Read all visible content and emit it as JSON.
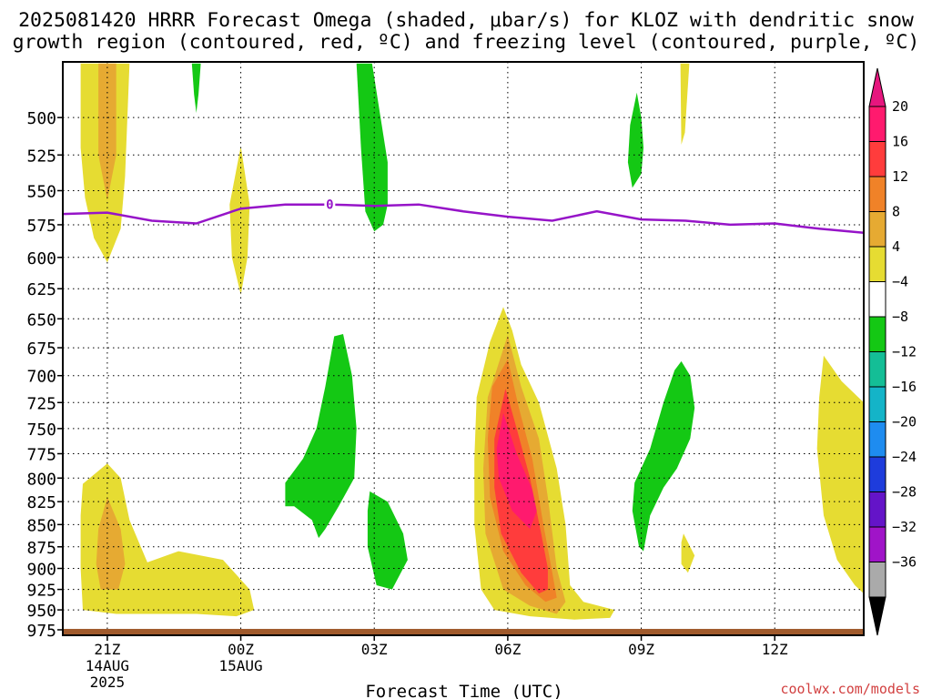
{
  "title": {
    "line1": "2025081420 HRRR Forecast Omega (shaded, μbar/s) for KLOZ with dendritic snow",
    "line2": "growth region (contoured, red, ºC) and freezing level (contoured, purple, ºC)"
  },
  "xlabel": "Forecast Time (UTC)",
  "credit": "coolwx.com/models",
  "y_ticks": [
    "500",
    "525",
    "550",
    "575",
    "600",
    "625",
    "650",
    "675",
    "700",
    "725",
    "750",
    "775",
    "800",
    "825",
    "850",
    "875",
    "900",
    "925",
    "950",
    "975"
  ],
  "x_ticks": [
    {
      "label": "21Z",
      "hour": 0,
      "sub1": "14AUG",
      "sub2": "2025"
    },
    {
      "label": "00Z",
      "hour": 3,
      "sub1": "15AUG",
      "sub2": ""
    },
    {
      "label": "03Z",
      "hour": 6,
      "sub1": "",
      "sub2": ""
    },
    {
      "label": "06Z",
      "hour": 9,
      "sub1": "",
      "sub2": ""
    },
    {
      "label": "09Z",
      "hour": 12,
      "sub1": "",
      "sub2": ""
    },
    {
      "label": "12Z",
      "hour": 15,
      "sub1": "",
      "sub2": ""
    }
  ],
  "colorbar": [
    {
      "label": "20",
      "color": "#ff1a6e"
    },
    {
      "label": "16",
      "color": "#ff3c3c"
    },
    {
      "label": "12",
      "color": "#f08228"
    },
    {
      "label": "8",
      "color": "#e6aa32"
    },
    {
      "label": "4",
      "color": "#e6dc32"
    },
    {
      "label": "−4",
      "color": "#ffffff"
    },
    {
      "label": "−8",
      "color": "#14c814"
    },
    {
      "label": "−12",
      "color": "#14be96"
    },
    {
      "label": "−16",
      "color": "#14b4c8"
    },
    {
      "label": "−20",
      "color": "#1e8cf0"
    },
    {
      "label": "−24",
      "color": "#1e3cdc"
    },
    {
      "label": "−28",
      "color": "#6414c8"
    },
    {
      "label": "−32",
      "color": "#a014c8"
    },
    {
      "label": "−36",
      "color": "#aaaaaa"
    }
  ],
  "colorbar_top_color": "#e6167e",
  "colorbar_bottom_color": "#000000",
  "chart_data": {
    "type": "time-height contour",
    "x_range_hours": [
      -1.0,
      17.0
    ],
    "y_range_hPa": [
      465,
      982
    ],
    "y_scale": "log-pressure (inverted)",
    "grid": true,
    "freezing_level": {
      "label": "0",
      "color": "#9614c8",
      "label_hour": 5.0,
      "points": [
        [
          -1.0,
          567
        ],
        [
          0.0,
          566
        ],
        [
          1.0,
          572
        ],
        [
          2.0,
          574
        ],
        [
          3.0,
          563
        ],
        [
          4.0,
          560
        ],
        [
          5.0,
          560
        ],
        [
          6.0,
          561
        ],
        [
          7.0,
          560
        ],
        [
          8.0,
          565
        ],
        [
          9.0,
          569
        ],
        [
          10.0,
          572
        ],
        [
          11.0,
          565
        ],
        [
          12.0,
          571
        ],
        [
          13.0,
          572
        ],
        [
          14.0,
          575
        ],
        [
          15.0,
          574
        ],
        [
          16.0,
          578
        ],
        [
          17.0,
          581
        ]
      ]
    },
    "terrain_color": "#a05a2c",
    "omega_regions": [
      {
        "name": "yellow-upper-21z",
        "value": 4,
        "points": [
          [
            -0.6,
            466
          ],
          [
            0.5,
            466
          ],
          [
            0.4,
            540
          ],
          [
            0.3,
            578
          ],
          [
            0.0,
            604
          ],
          [
            -0.3,
            585
          ],
          [
            -0.5,
            555
          ],
          [
            -0.6,
            520
          ]
        ]
      },
      {
        "name": "orange-upper-21z",
        "value": 8,
        "points": [
          [
            -0.2,
            466
          ],
          [
            0.2,
            466
          ],
          [
            0.2,
            525
          ],
          [
            0.0,
            557
          ],
          [
            -0.2,
            525
          ]
        ]
      },
      {
        "name": "yellow-upper-00z",
        "value": 4,
        "points": [
          [
            3.0,
            519
          ],
          [
            3.2,
            560
          ],
          [
            3.15,
            600
          ],
          [
            3.0,
            630
          ],
          [
            2.8,
            600
          ],
          [
            2.75,
            560
          ]
        ]
      },
      {
        "name": "green-upper-01z",
        "value": -4,
        "points": [
          [
            1.9,
            466
          ],
          [
            2.1,
            466
          ],
          [
            2.05,
            485
          ],
          [
            2.0,
            497
          ],
          [
            1.95,
            485
          ]
        ]
      },
      {
        "name": "green-upper-03z",
        "value": -4,
        "points": [
          [
            5.6,
            466
          ],
          [
            5.95,
            466
          ],
          [
            6.3,
            530
          ],
          [
            6.3,
            560
          ],
          [
            6.2,
            575
          ],
          [
            6.0,
            580
          ],
          [
            5.8,
            565
          ],
          [
            5.7,
            520
          ]
        ]
      },
      {
        "name": "green-upper-08z",
        "value": -4,
        "points": [
          [
            11.9,
            484
          ],
          [
            12.0,
            500
          ],
          [
            12.05,
            520
          ],
          [
            12.0,
            538
          ],
          [
            11.8,
            548
          ],
          [
            11.7,
            530
          ],
          [
            11.75,
            505
          ]
        ]
      },
      {
        "name": "yellow-upper-09z",
        "value": 4,
        "points": [
          [
            12.88,
            466
          ],
          [
            13.08,
            466
          ],
          [
            12.98,
            510
          ],
          [
            12.9,
            518
          ]
        ]
      },
      {
        "name": "green-mid-01z",
        "value": -4,
        "points": [
          [
            5.3,
            663
          ],
          [
            5.5,
            700
          ],
          [
            5.6,
            750
          ],
          [
            5.55,
            800
          ],
          [
            5.2,
            830
          ],
          [
            4.9,
            855
          ],
          [
            4.75,
            865
          ],
          [
            4.6,
            845
          ],
          [
            4.2,
            830
          ],
          [
            4.0,
            830
          ],
          [
            4.0,
            805
          ],
          [
            4.4,
            780
          ],
          [
            4.7,
            750
          ],
          [
            4.9,
            710
          ],
          [
            5.1,
            665
          ]
        ]
      },
      {
        "name": "green-low-03z",
        "value": -4,
        "points": [
          [
            5.9,
            814
          ],
          [
            6.3,
            825
          ],
          [
            6.65,
            860
          ],
          [
            6.75,
            890
          ],
          [
            6.4,
            925
          ],
          [
            6.05,
            920
          ],
          [
            5.85,
            875
          ],
          [
            5.85,
            835
          ]
        ]
      },
      {
        "name": "yellow-low-21z",
        "value": 4,
        "points": [
          [
            -0.55,
            806
          ],
          [
            0.0,
            785
          ],
          [
            0.3,
            800
          ],
          [
            0.5,
            845
          ],
          [
            0.9,
            893
          ],
          [
            1.6,
            880
          ],
          [
            2.6,
            890
          ],
          [
            3.2,
            925
          ],
          [
            3.3,
            950
          ],
          [
            2.9,
            958
          ],
          [
            2.0,
            955
          ],
          [
            1.2,
            955
          ],
          [
            0.2,
            955
          ],
          [
            -0.55,
            950
          ],
          [
            -0.6,
            900
          ],
          [
            -0.6,
            840
          ]
        ]
      },
      {
        "name": "orange-low-21z",
        "value": 8,
        "points": [
          [
            0.0,
            820
          ],
          [
            0.3,
            855
          ],
          [
            0.4,
            895
          ],
          [
            0.25,
            925
          ],
          [
            -0.15,
            925
          ],
          [
            -0.25,
            895
          ],
          [
            -0.2,
            855
          ]
        ]
      },
      {
        "name": "yellow-main-06z",
        "value": 4,
        "points": [
          [
            8.9,
            640
          ],
          [
            9.1,
            660
          ],
          [
            9.3,
            690
          ],
          [
            9.7,
            725
          ],
          [
            10.1,
            790
          ],
          [
            10.3,
            850
          ],
          [
            10.4,
            920
          ],
          [
            10.7,
            940
          ],
          [
            11.4,
            950
          ],
          [
            11.3,
            960
          ],
          [
            10.5,
            962
          ],
          [
            9.5,
            958
          ],
          [
            8.7,
            950
          ],
          [
            8.4,
            925
          ],
          [
            8.25,
            850
          ],
          [
            8.25,
            780
          ],
          [
            8.3,
            720
          ],
          [
            8.6,
            670
          ]
        ]
      },
      {
        "name": "orange-main-06z",
        "value": 8,
        "points": [
          [
            9.0,
            664
          ],
          [
            9.3,
            710
          ],
          [
            9.7,
            760
          ],
          [
            9.9,
            820
          ],
          [
            10.1,
            900
          ],
          [
            10.3,
            940
          ],
          [
            10.1,
            955
          ],
          [
            9.5,
            945
          ],
          [
            8.9,
            925
          ],
          [
            8.5,
            860
          ],
          [
            8.45,
            790
          ],
          [
            8.55,
            720
          ]
        ]
      },
      {
        "name": "darkorange-main-06z",
        "value": 12,
        "points": [
          [
            9.0,
            685
          ],
          [
            9.25,
            730
          ],
          [
            9.55,
            780
          ],
          [
            9.8,
            850
          ],
          [
            10.0,
            905
          ],
          [
            10.1,
            935
          ],
          [
            9.85,
            940
          ],
          [
            9.4,
            920
          ],
          [
            8.9,
            880
          ],
          [
            8.6,
            820
          ],
          [
            8.55,
            760
          ],
          [
            8.65,
            710
          ]
        ]
      },
      {
        "name": "red-main-06z",
        "value": 16,
        "points": [
          [
            8.95,
            712
          ],
          [
            9.2,
            750
          ],
          [
            9.5,
            800
          ],
          [
            9.75,
            860
          ],
          [
            9.9,
            900
          ],
          [
            9.9,
            925
          ],
          [
            9.7,
            930
          ],
          [
            9.3,
            905
          ],
          [
            8.85,
            860
          ],
          [
            8.7,
            810
          ],
          [
            8.7,
            760
          ]
        ]
      },
      {
        "name": "magenta-main-06z",
        "value": 20,
        "points": [
          [
            8.9,
            735
          ],
          [
            9.2,
            775
          ],
          [
            9.55,
            812
          ],
          [
            9.65,
            835
          ],
          [
            9.5,
            855
          ],
          [
            9.1,
            835
          ],
          [
            8.8,
            800
          ],
          [
            8.75,
            770
          ]
        ]
      },
      {
        "name": "green-mid-09z",
        "value": -4,
        "points": [
          [
            12.9,
            687
          ],
          [
            13.1,
            700
          ],
          [
            13.2,
            730
          ],
          [
            13.1,
            760
          ],
          [
            12.8,
            790
          ],
          [
            12.5,
            810
          ],
          [
            12.2,
            840
          ],
          [
            12.05,
            880
          ],
          [
            11.95,
            875
          ],
          [
            11.8,
            835
          ],
          [
            11.85,
            805
          ],
          [
            12.2,
            770
          ],
          [
            12.5,
            725
          ],
          [
            12.75,
            695
          ]
        ]
      },
      {
        "name": "yellow-small-09z",
        "value": 4,
        "points": [
          [
            12.95,
            860
          ],
          [
            13.1,
            875
          ],
          [
            13.2,
            885
          ],
          [
            13.05,
            905
          ],
          [
            12.9,
            895
          ],
          [
            12.9,
            870
          ]
        ]
      },
      {
        "name": "yellow-right-13z",
        "value": 4,
        "points": [
          [
            16.1,
            682
          ],
          [
            16.5,
            705
          ],
          [
            17.0,
            725
          ],
          [
            17.0,
            930
          ],
          [
            16.8,
            920
          ],
          [
            16.4,
            890
          ],
          [
            16.1,
            840
          ],
          [
            15.95,
            770
          ],
          [
            16.0,
            720
          ]
        ]
      }
    ]
  }
}
